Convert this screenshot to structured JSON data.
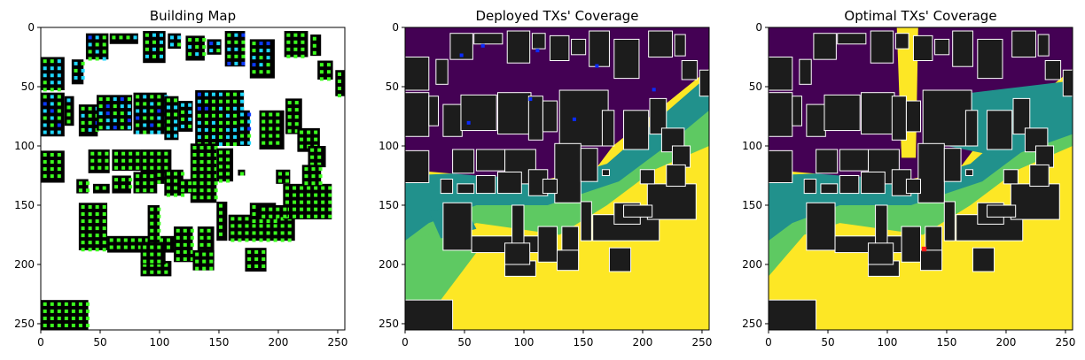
{
  "figure": {
    "panel_count": 3
  },
  "chart_data": [
    {
      "type": "heatmap",
      "title": "Building Map",
      "xlabel": "",
      "ylabel": "",
      "x_ticks": [
        0,
        50,
        100,
        150,
        200,
        250
      ],
      "y_ticks": [
        0,
        50,
        100,
        150,
        200,
        250
      ],
      "xlim": [
        0,
        256
      ],
      "ylim": [
        256,
        0
      ],
      "content": "buildings (black) with candidate TX markers in green, light-blue and dark-blue",
      "colors": {
        "background": "#ffffff",
        "building": "#000000",
        "marker_green": "#3bff1e",
        "marker_cyan": "#1ed7ff",
        "marker_blue": "#0a39ff"
      }
    },
    {
      "type": "heatmap",
      "title": "Deployed TXs' Coverage",
      "xlabel": "",
      "ylabel": "",
      "x_ticks": [
        0,
        50,
        100,
        150,
        200,
        250
      ],
      "y_ticks": [
        0,
        50,
        100,
        150,
        200,
        250
      ],
      "xlim": [
        0,
        256
      ],
      "ylim": [
        256,
        0
      ],
      "colormap": "viridis",
      "colors": {
        "low": "#440154",
        "mid": "#21918c",
        "mid_high": "#5ec962",
        "high": "#fde725",
        "building": "#1c1c1c",
        "building_edge": "#ffffff",
        "tx_marker": "#0a2bff"
      }
    },
    {
      "type": "heatmap",
      "title": "Optimal TXs' Coverage",
      "xlabel": "",
      "ylabel": "",
      "x_ticks": [
        0,
        50,
        100,
        150,
        200,
        250
      ],
      "y_ticks": [
        0,
        50,
        100,
        150,
        200,
        250
      ],
      "xlim": [
        0,
        256
      ],
      "ylim": [
        256,
        0
      ],
      "colormap": "viridis",
      "colors": {
        "low": "#440154",
        "mid": "#21918c",
        "mid_high": "#5ec962",
        "high": "#fde725",
        "building": "#1c1c1c",
        "building_edge": "#ffffff",
        "tx_marker": "#ff1a1a"
      }
    }
  ]
}
